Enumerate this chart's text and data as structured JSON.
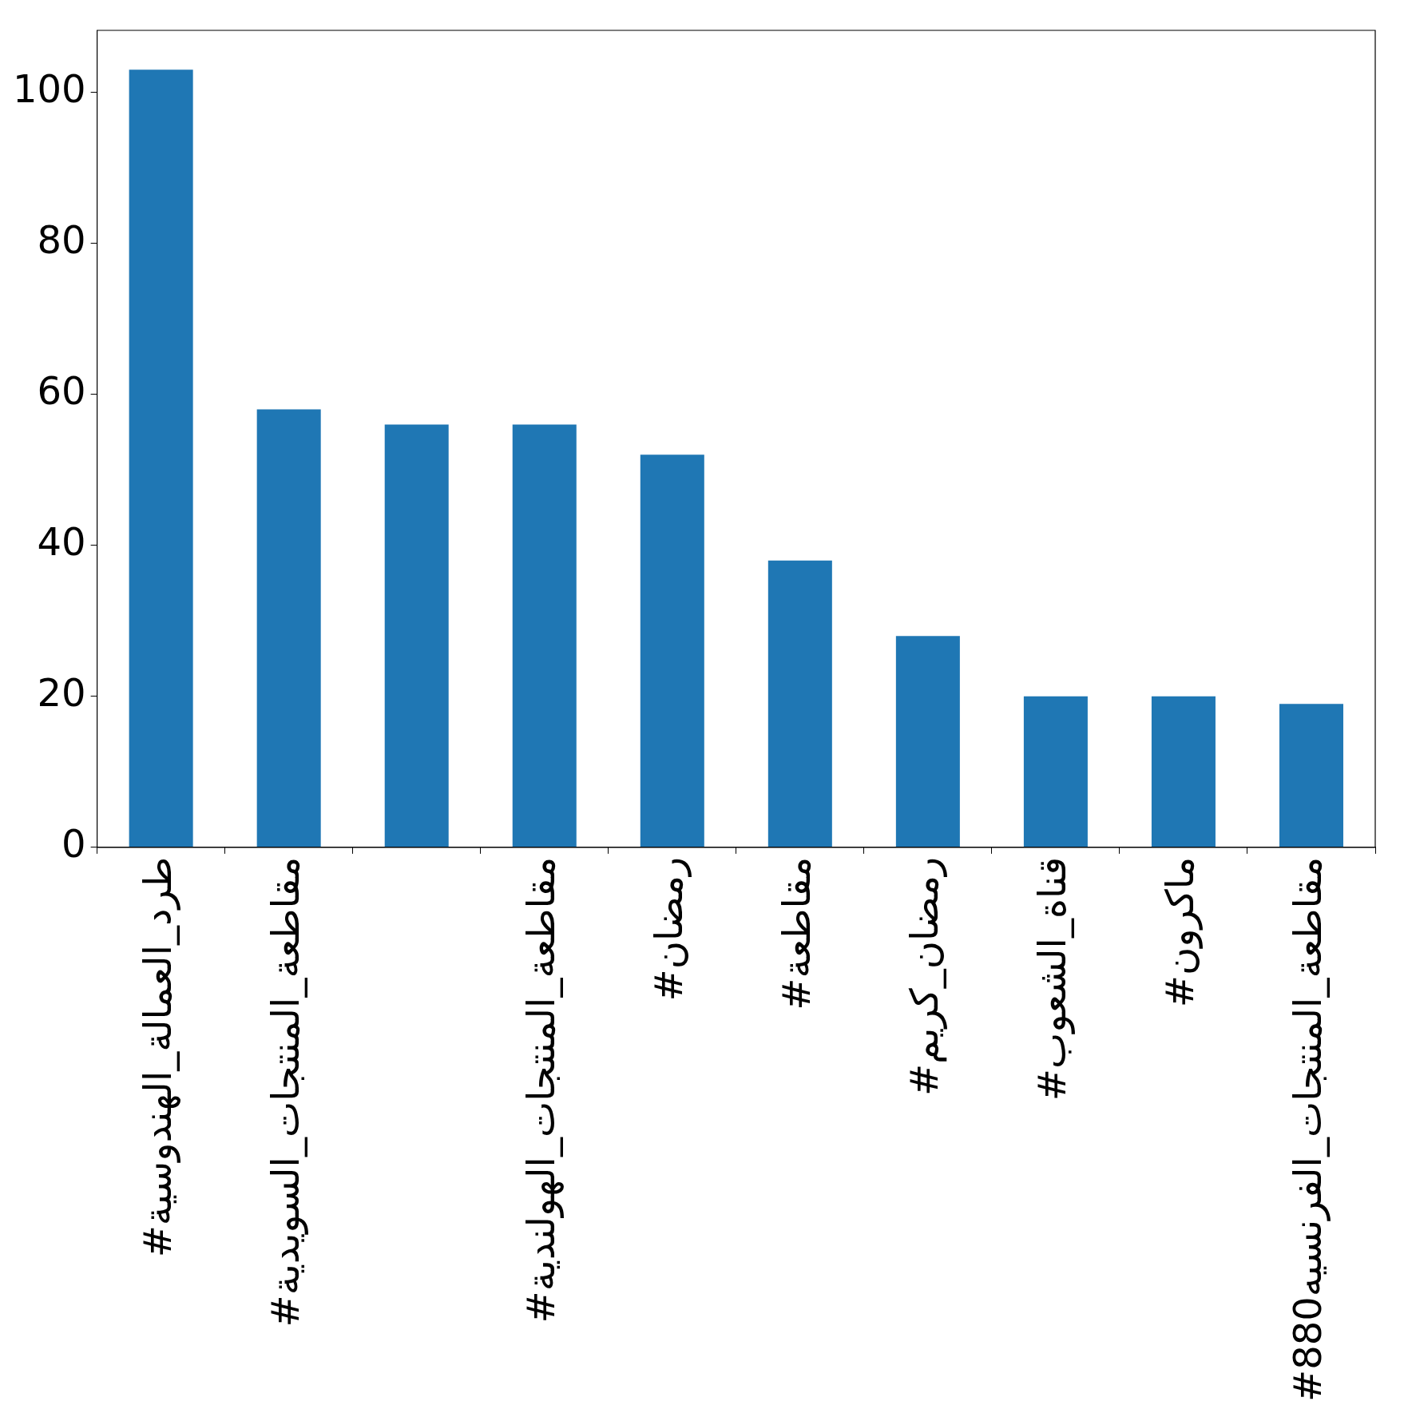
{
  "chart_data": {
    "type": "bar",
    "categories": [
      "#طرد_العمالة_الهندوسية",
      "#مقاطعة_المنتجات_السويدية",
      null,
      "#مقاطعة_المنتجات_الهولندية",
      "#رمضان",
      "#مقاطعة",
      "#رمضان_كريم",
      "#قناة_الشعوب",
      "#ماكرون",
      "#مقاطعة_المنتجات_الفرنسيه880"
    ],
    "values": [
      103,
      58,
      56,
      56,
      52,
      38,
      28,
      20,
      20,
      19
    ],
    "color": "#1f77b4",
    "ylim": [
      0,
      108.2
    ],
    "yticks": [
      0,
      20,
      40,
      60,
      80,
      100
    ],
    "grid": false,
    "legend": false
  }
}
